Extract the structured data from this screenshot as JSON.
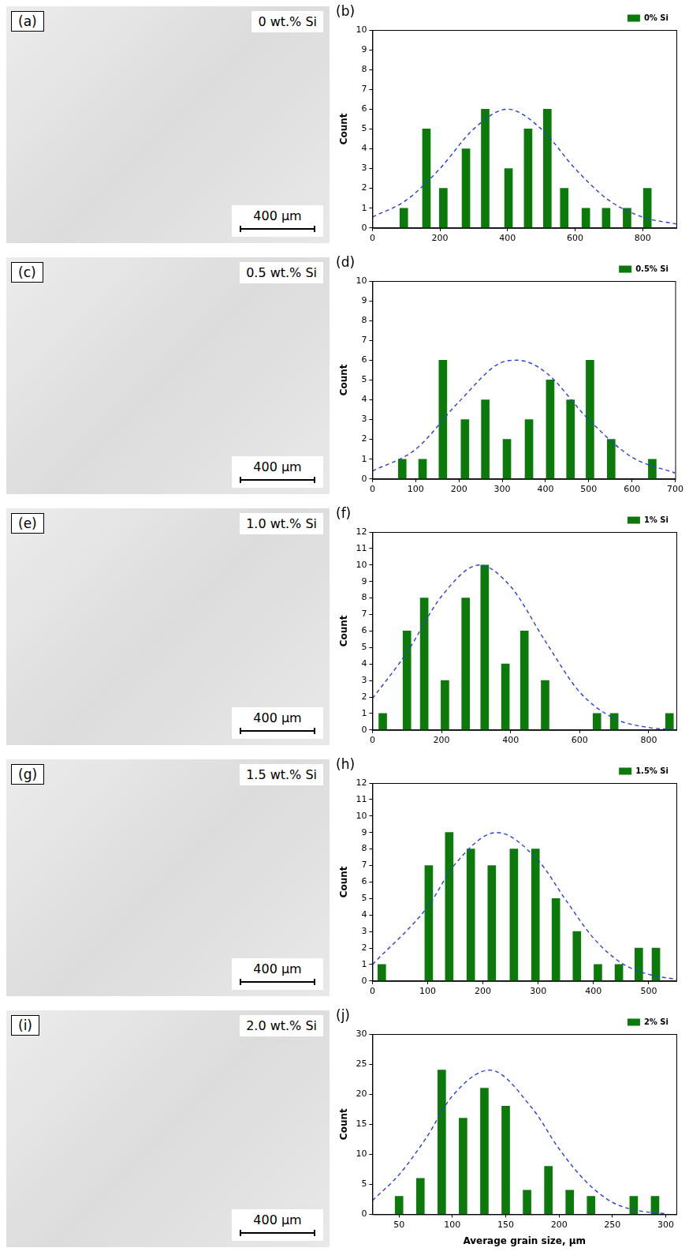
{
  "images": [
    {
      "label": "(a)",
      "caption": "0 wt.% Si",
      "scale_bar": "400 µm"
    },
    {
      "label": "(c)",
      "caption": "0.5 wt.% Si",
      "scale_bar": "400 µm"
    },
    {
      "label": "(e)",
      "caption": "1.0 wt.% Si",
      "scale_bar": "400 µm"
    },
    {
      "label": "(g)",
      "caption": "1.5 wt.% Si",
      "scale_bar": "400 µm"
    },
    {
      "label": "(i)",
      "caption": "2.0 wt.% Si",
      "scale_bar": "400 µm"
    }
  ],
  "chart_data": [
    {
      "type": "bar",
      "label": "(b)",
      "y_label": "Count",
      "xlim": [
        0,
        900
      ],
      "xticks": [
        0,
        200,
        400,
        600,
        800
      ],
      "ylim": [
        0,
        10
      ],
      "yticks": [
        0,
        1,
        2,
        3,
        4,
        5,
        6,
        7,
        8,
        9,
        10
      ],
      "grid": false,
      "legend": "top-right",
      "series": [
        {
          "name": "0% Si",
          "type": "bar",
          "color": "#0b7a0b",
          "x": [
            93,
            160,
            210,
            277,
            334,
            403,
            461,
            518,
            568,
            632,
            692,
            754,
            814
          ],
          "values": [
            1,
            5,
            2,
            4,
            6,
            3,
            5,
            6,
            2,
            1,
            1,
            1,
            2
          ]
        },
        {
          "type": "line",
          "color": "#2a3fd4",
          "line_style": "dashed",
          "x": [
            0,
            100,
            200,
            300,
            400,
            500,
            600,
            700,
            800,
            900
          ],
          "values": [
            0.55,
            1.4,
            3.0,
            5.0,
            6.0,
            5.0,
            3.0,
            1.4,
            0.55,
            0.2
          ]
        }
      ]
    },
    {
      "type": "bar",
      "label": "(d)",
      "y_label": "Count",
      "xlim": [
        0,
        700
      ],
      "xticks": [
        0,
        100,
        200,
        300,
        400,
        500,
        600,
        700
      ],
      "ylim": [
        0,
        10
      ],
      "yticks": [
        0,
        1,
        2,
        3,
        4,
        5,
        6,
        7,
        8,
        9,
        10
      ],
      "grid": false,
      "legend": "top-right",
      "series": [
        {
          "name": "0.5% Si",
          "type": "bar",
          "color": "#0b7a0b",
          "x": [
            69,
            116,
            163,
            214,
            261,
            311,
            362,
            411,
            458,
            503,
            552,
            647
          ],
          "values": [
            1,
            1,
            6,
            3,
            4,
            2,
            3,
            5,
            4,
            6,
            2,
            1
          ]
        },
        {
          "type": "line",
          "color": "#2a3fd4",
          "line_style": "dashed",
          "x": [
            0,
            100,
            200,
            300,
            335,
            400,
            500,
            600,
            700
          ],
          "values": [
            0.4,
            1.5,
            3.9,
            5.9,
            6.0,
            5.4,
            3.0,
            1.1,
            0.3
          ]
        }
      ]
    },
    {
      "type": "bar",
      "label": "(f)",
      "y_label": "Count",
      "xlim": [
        0,
        880
      ],
      "xticks": [
        0,
        200,
        400,
        600,
        800
      ],
      "ylim": [
        0,
        12
      ],
      "yticks": [
        0,
        1,
        2,
        3,
        4,
        5,
        6,
        7,
        8,
        9,
        10,
        11,
        12
      ],
      "grid": false,
      "legend": "top-right",
      "series": [
        {
          "name": "1% Si",
          "type": "bar",
          "color": "#0b7a0b",
          "x": [
            30,
            100,
            150,
            210,
            270,
            325,
            385,
            440,
            500,
            650,
            700,
            860
          ],
          "values": [
            1,
            6,
            8,
            3,
            8,
            10,
            4,
            6,
            3,
            1,
            1,
            1
          ]
        },
        {
          "type": "line",
          "color": "#2a3fd4",
          "line_style": "dashed",
          "x": [
            0,
            100,
            200,
            310,
            400,
            500,
            600,
            700,
            800,
            880
          ],
          "values": [
            1.9,
            4.7,
            8.1,
            10,
            8.7,
            5.4,
            2.3,
            0.7,
            0.15,
            0.02
          ]
        }
      ]
    },
    {
      "type": "bar",
      "label": "(h)",
      "y_label": "Count",
      "xlim": [
        0,
        550
      ],
      "xticks": [
        0,
        100,
        200,
        300,
        400,
        500
      ],
      "ylim": [
        0,
        12
      ],
      "yticks": [
        0,
        1,
        2,
        3,
        4,
        5,
        6,
        7,
        8,
        9,
        10,
        11,
        12
      ],
      "grid": false,
      "legend": "top-right",
      "series": [
        {
          "name": "1.5% Si",
          "type": "bar",
          "color": "#0b7a0b",
          "x": [
            17,
            102,
            139,
            178,
            216,
            256,
            295,
            332,
            370,
            408,
            446,
            482,
            513
          ],
          "values": [
            1,
            7,
            9,
            8,
            7,
            8,
            8,
            5,
            3,
            1,
            1,
            2,
            2
          ]
        },
        {
          "type": "line",
          "color": "#2a3fd4",
          "line_style": "dashed",
          "x": [
            0,
            100,
            150,
            225,
            300,
            350,
            400,
            450,
            500,
            550
          ],
          "values": [
            1.0,
            4.5,
            7.1,
            9,
            7.3,
            4.9,
            2.6,
            1.1,
            0.4,
            0.1
          ]
        }
      ]
    },
    {
      "type": "bar",
      "label": "(j)",
      "y_label": "Count",
      "x_label": "Average grain size, µm",
      "xlim": [
        25,
        310
      ],
      "xticks": [
        50,
        100,
        150,
        200,
        250,
        300
      ],
      "ylim": [
        0,
        30
      ],
      "yticks": [
        0,
        5,
        10,
        15,
        20,
        25,
        30
      ],
      "grid": false,
      "legend": "top-right",
      "series": [
        {
          "name": "2% Si",
          "type": "bar",
          "color": "#0b7a0b",
          "x": [
            50,
            70,
            90,
            110,
            130,
            150,
            170,
            190,
            210,
            230,
            270,
            290
          ],
          "values": [
            3,
            6,
            24,
            16,
            21,
            18,
            4,
            8,
            4,
            3,
            3,
            3
          ]
        },
        {
          "type": "line",
          "color": "#2a3fd4",
          "line_style": "dashed",
          "x": [
            25,
            50,
            75,
            100,
            135,
            175,
            200,
            225,
            250,
            275,
            300
          ],
          "values": [
            2.3,
            6.6,
            12.6,
            19.7,
            24,
            17.6,
            10.9,
            5.5,
            2.0,
            0.6,
            0.1
          ]
        }
      ]
    }
  ]
}
